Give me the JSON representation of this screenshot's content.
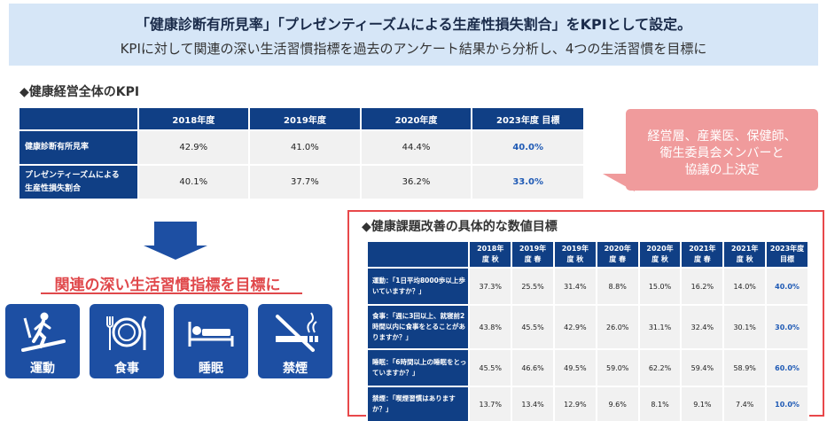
{
  "banner": {
    "line1": "「健康診断有所見率」「プレゼンティーズムによる生産性損失割合」をKPIとして設定。",
    "line2": "KPIに対して関連の深い生活習慣指標を過去のアンケート結果から分析し、4つの生活習慣を目標に"
  },
  "kpi": {
    "title": "◆健康経営全体のKPI",
    "headers": [
      "2018年度",
      "2019年度",
      "2020年度",
      "2023年度 目標"
    ],
    "rows": [
      {
        "label": "健康診断有所見率",
        "values": [
          "42.9%",
          "41.0%",
          "44.4%",
          "40.0%"
        ]
      },
      {
        "label_line1": "プレゼンティーズムによる",
        "label_line2": "生産性損失割合",
        "values": [
          "40.1%",
          "37.7%",
          "36.2%",
          "33.0%"
        ]
      }
    ]
  },
  "callout": {
    "line1": "経営層、産業医、保健師、",
    "line2": "衛生委員会メンバーと",
    "line3": "協議の上決定",
    "color": "#f09b9c"
  },
  "habits": {
    "title": "関連の深い生活習慣指標を目標に",
    "tiles": [
      {
        "label": "運動",
        "icon": "treadmill-icon"
      },
      {
        "label": "食事",
        "icon": "plate-utensils-icon"
      },
      {
        "label": "睡眠",
        "icon": "sleeping-person-icon"
      },
      {
        "label": "禁煙",
        "icon": "no-smoking-icon"
      }
    ]
  },
  "goals": {
    "title": "◆健康課題改善の具体的な数値目標",
    "headers": [
      {
        "top": "2018年",
        "bottom": "度 秋"
      },
      {
        "top": "2019年",
        "bottom": "度 春"
      },
      {
        "top": "2019年",
        "bottom": "度 秋"
      },
      {
        "top": "2020年",
        "bottom": "度 春"
      },
      {
        "top": "2020年",
        "bottom": "度 秋"
      },
      {
        "top": "2021年",
        "bottom": "度 春"
      },
      {
        "top": "2021年",
        "bottom": "度 秋"
      },
      {
        "top": "2023年度",
        "bottom": "目標"
      }
    ],
    "rows": [
      {
        "label_line1": "運動：「1日平均8000歩以上歩",
        "label_line2": "いていますか？」",
        "label_line3": "",
        "values": [
          "37.3%",
          "25.5%",
          "31.4%",
          "8.8%",
          "15.0%",
          "16.2%",
          "14.0%",
          "40.0%"
        ]
      },
      {
        "label_line1": "食事：「週に3回以上、就寝前2",
        "label_line2": "時間以内に食事をとることがあ",
        "label_line3": "りますか？」",
        "values": [
          "43.8%",
          "45.5%",
          "42.9%",
          "26.0%",
          "31.1%",
          "32.4%",
          "30.1%",
          "30.0%"
        ]
      },
      {
        "label_line1": "睡眠：「6時間以上の睡眠をとっ",
        "label_line2": "ていますか？」",
        "label_line3": "",
        "values": [
          "45.5%",
          "46.6%",
          "49.5%",
          "59.0%",
          "62.2%",
          "59.4%",
          "58.9%",
          "60.0%"
        ]
      },
      {
        "label_line1": "禁煙：「喫煙習慣はあります",
        "label_line2": "か？」",
        "label_line3": "",
        "values": [
          "13.7%",
          "13.4%",
          "12.9%",
          "9.6%",
          "8.1%",
          "9.1%",
          "7.4%",
          "10.0%"
        ]
      }
    ]
  },
  "colors": {
    "header_navy": "#103f85",
    "tile_blue": "#1d4fa3",
    "accent_red": "#e0484b",
    "goal_blue": "#1f5ab5",
    "banner_bg": "#d6e6f7"
  }
}
